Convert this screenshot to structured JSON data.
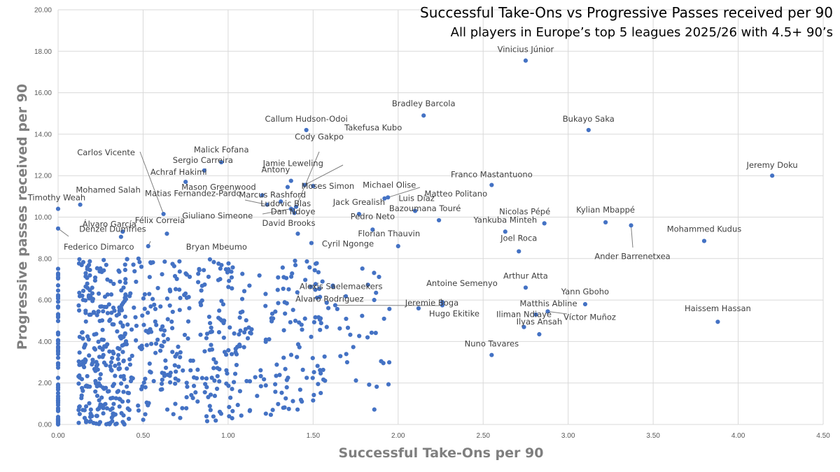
{
  "chart_data": {
    "type": "scatter",
    "title": "Successful Take-Ons vs Progressive Passes received per 90",
    "subtitle": "All players in Europe’s top 5 leagues 2025/26 with 4.5+ 90’s",
    "xlabel": "Successful Take-Ons per 90",
    "ylabel": "Progressive passes received per 90",
    "xlim": [
      0,
      4.5
    ],
    "ylim": [
      0,
      20
    ],
    "xticks": [
      "0.00",
      "0.50",
      "1.00",
      "1.50",
      "2.00",
      "2.50",
      "3.00",
      "3.50",
      "4.00",
      "4.50"
    ],
    "yticks": [
      "0.00",
      "2.00",
      "4.00",
      "6.00",
      "8.00",
      "10.00",
      "12.00",
      "14.00",
      "16.00",
      "18.00",
      "20.00"
    ],
    "grid": "vertical-and-horizontal",
    "marker_color": "#4472C4",
    "labeled_points": [
      {
        "name": "Vinicius Júnior",
        "x": 2.75,
        "y": 17.55
      },
      {
        "name": "Bradley Barcola",
        "x": 2.15,
        "y": 14.9
      },
      {
        "name": "Callum Hudson-Odoi",
        "x": 1.46,
        "y": 14.2
      },
      {
        "name": "Bukayo Saka",
        "x": 3.12,
        "y": 14.2
      },
      {
        "name": "Jeremy Doku",
        "x": 4.2,
        "y": 12.0
      },
      {
        "name": "Malick Fofana",
        "x": 0.96,
        "y": 12.65
      },
      {
        "name": "Sergio Carreira",
        "x": 0.86,
        "y": 12.25
      },
      {
        "name": "Achraf Hakimi",
        "x": 0.75,
        "y": 11.7
      },
      {
        "name": "Carlos Vicente",
        "x": 0.62,
        "y": 10.15
      },
      {
        "name": "Mohamed Salah",
        "x": 0.13,
        "y": 10.6
      },
      {
        "name": "Timothy Weah",
        "x": 0.0,
        "y": 10.4
      },
      {
        "name": "Jamie Leweling",
        "x": 1.37,
        "y": 11.75
      },
      {
        "name": "Antony",
        "x": 1.35,
        "y": 11.45
      },
      {
        "name": "Cody Gakpo",
        "x": 1.4,
        "y": 10.5
      },
      {
        "name": "Takefusa Kubo",
        "x": 1.45,
        "y": 11.55
      },
      {
        "name": "Mason Greenwood",
        "x": 1.2,
        "y": 11.05
      },
      {
        "name": "Marcus Rashford",
        "x": 1.31,
        "y": 10.75
      },
      {
        "name": "Matias Fernandez-Pardo",
        "x": 1.23,
        "y": 10.6
      },
      {
        "name": "Moses Simon",
        "x": 1.5,
        "y": 11.5
      },
      {
        "name": "Franco Mastantuono",
        "x": 2.55,
        "y": 11.55
      },
      {
        "name": "Michael Olise",
        "x": 1.94,
        "y": 10.95
      },
      {
        "name": "Matteo Politano",
        "x": 1.92,
        "y": 10.9
      },
      {
        "name": "Ludovic Blas",
        "x": 1.38,
        "y": 10.35
      },
      {
        "name": "Giuliano Simeone",
        "x": 1.37,
        "y": 10.4
      },
      {
        "name": "Dan Ndoye",
        "x": 1.39,
        "y": 10.2
      },
      {
        "name": "Luis Díaz",
        "x": 2.1,
        "y": 10.3
      },
      {
        "name": "Jack Grealish",
        "x": 1.77,
        "y": 10.15
      },
      {
        "name": "Bazoumana Touré",
        "x": 2.24,
        "y": 9.85
      },
      {
        "name": "Nicolas Pépé",
        "x": 2.86,
        "y": 9.7
      },
      {
        "name": "Kylian Mbappé",
        "x": 3.22,
        "y": 9.75
      },
      {
        "name": "Álvaro García",
        "x": 0.38,
        "y": 9.3
      },
      {
        "name": "Félix Correia",
        "x": 0.64,
        "y": 9.2
      },
      {
        "name": "Denzel Dumfries",
        "x": 0.37,
        "y": 9.05
      },
      {
        "name": "David Brooks",
        "x": 1.41,
        "y": 9.2
      },
      {
        "name": "Pedro Neto",
        "x": 1.85,
        "y": 9.4
      },
      {
        "name": "Yankuba Minteh",
        "x": 2.63,
        "y": 9.3
      },
      {
        "name": "Ander Barrenetxea",
        "x": 3.37,
        "y": 9.6
      },
      {
        "name": "Mohammed Kudus",
        "x": 3.8,
        "y": 8.85
      },
      {
        "name": "Federico Dimarco",
        "x": 0.0,
        "y": 9.45
      },
      {
        "name": "Bryan Mbeumo",
        "x": 0.53,
        "y": 8.6
      },
      {
        "name": "Cyril Ngonge",
        "x": 1.49,
        "y": 8.75
      },
      {
        "name": "Florian Thauvin",
        "x": 2.0,
        "y": 8.6
      },
      {
        "name": "Joel Roca",
        "x": 2.71,
        "y": 8.35
      },
      {
        "name": "Arthur Atta",
        "x": 2.75,
        "y": 6.6
      },
      {
        "name": "Alexis Saelemaekers",
        "x": 1.87,
        "y": 6.35
      },
      {
        "name": "Antoine Semenyo",
        "x": 2.26,
        "y": 5.9
      },
      {
        "name": "Yann Gboho",
        "x": 3.1,
        "y": 5.8
      },
      {
        "name": "Jeremie Boga",
        "x": 2.12,
        "y": 5.6
      },
      {
        "name": "Álvaro Rodríguez",
        "x": 1.63,
        "y": 5.75
      },
      {
        "name": "Hugo Ekitike",
        "x": 2.26,
        "y": 5.75
      },
      {
        "name": "Matthis Abline",
        "x": 2.81,
        "y": 5.3
      },
      {
        "name": "Víctor Muñoz",
        "x": 2.88,
        "y": 5.45
      },
      {
        "name": "Haissem Hassan",
        "x": 3.88,
        "y": 4.95
      },
      {
        "name": "Iliman Ndiaye",
        "x": 2.74,
        "y": 4.7
      },
      {
        "name": "Ilyas Ansah",
        "x": 2.83,
        "y": 4.35
      },
      {
        "name": "Nuno Tavares",
        "x": 2.55,
        "y": 3.35
      }
    ]
  }
}
